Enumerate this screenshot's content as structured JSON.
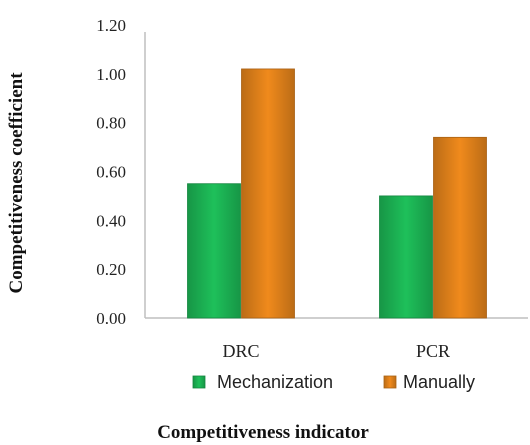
{
  "chart_data": {
    "type": "bar",
    "categories": [
      "DRC",
      "PCR"
    ],
    "series": [
      {
        "name": "Mechanization",
        "values": [
          0.55,
          0.5
        ],
        "color": "#1ec05a"
      },
      {
        "name": "Manually",
        "values": [
          1.02,
          0.74
        ],
        "color": "#f08a1c"
      }
    ],
    "title": "",
    "xlabel": "Competitiveness indicator",
    "ylabel": "Competitiveness coefficient",
    "ylim": [
      0,
      1.2
    ],
    "yticks": [
      "0.00",
      "0.20",
      "0.40",
      "0.60",
      "0.80",
      "1.00",
      "1.20"
    ],
    "grid": false,
    "legend_position": "bottom"
  }
}
